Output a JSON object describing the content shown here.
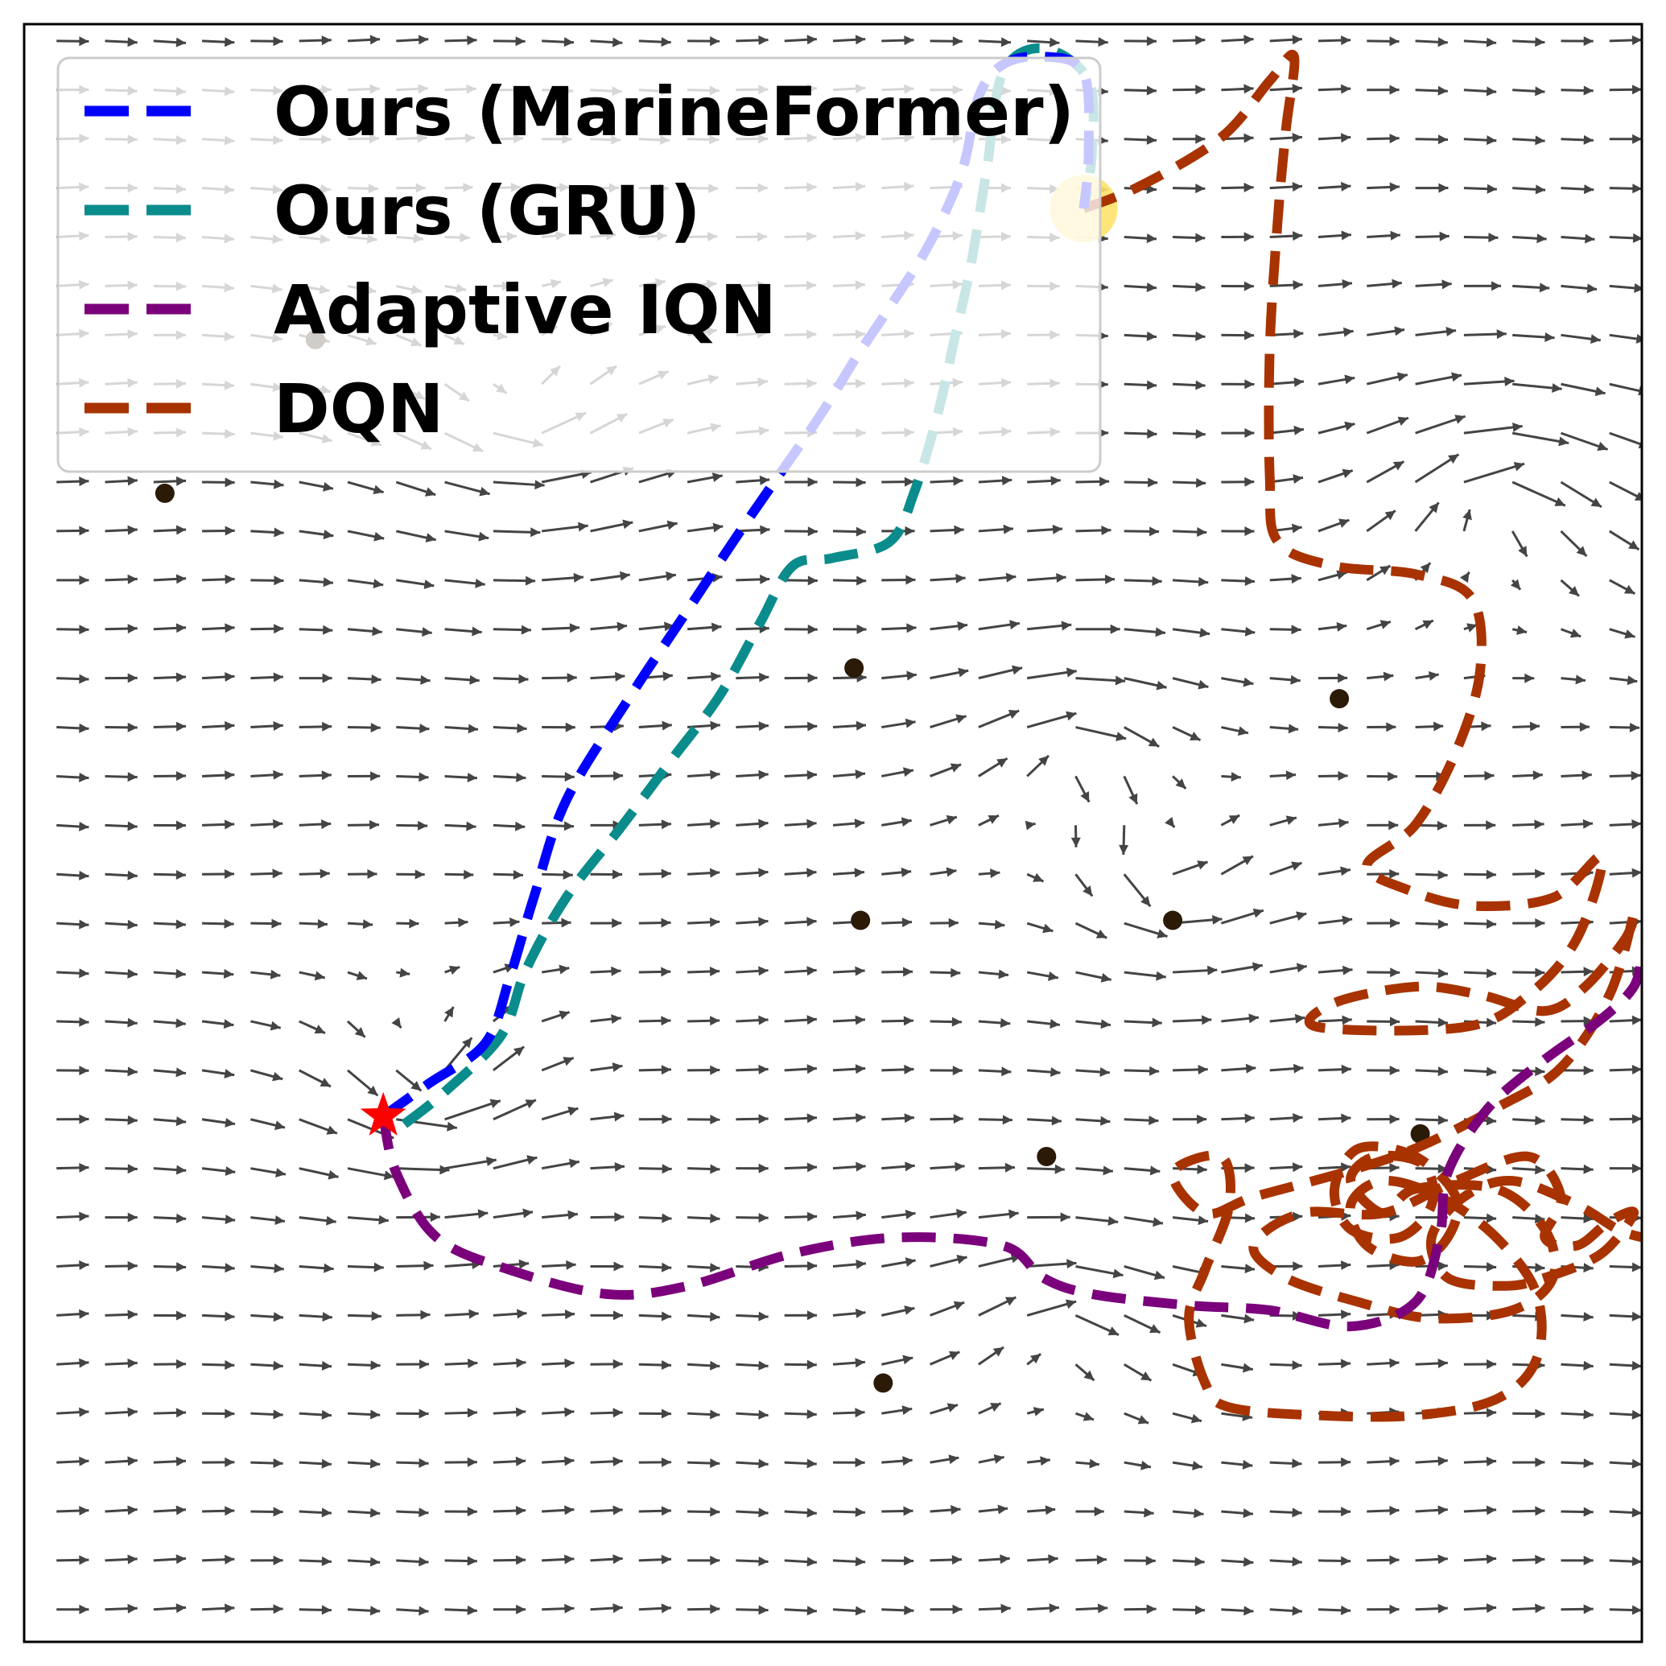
{
  "chart_data": {
    "type": "quiver+trajectories",
    "title": "",
    "xlabel": "",
    "ylabel": "",
    "xlim": [
      0,
      100
    ],
    "ylim": [
      0,
      100
    ],
    "ticks_visible": false,
    "legend": {
      "placement": "top-left",
      "entries": [
        {
          "label": "Ours (MarineFormer)",
          "color": "#0000ff"
        },
        {
          "label": "Ours (GRU)",
          "color": "#0b8c8c"
        },
        {
          "label": "Adaptive IQN",
          "color": "#7b007b"
        },
        {
          "label": "DQN",
          "color": "#a83300"
        }
      ]
    },
    "start": {
      "marker": "star",
      "color": "#ff0000",
      "x": 22.2,
      "y": 32.5
    },
    "goal": {
      "marker": "circle",
      "color": "#fde26a",
      "x": 65.5,
      "y": 88.6
    },
    "obstacles": [
      {
        "x": 8.7,
        "y": 71.0
      },
      {
        "x": 18.0,
        "y": 80.5
      },
      {
        "x": 51.3,
        "y": 60.2
      },
      {
        "x": 81.3,
        "y": 58.3
      },
      {
        "x": 51.7,
        "y": 44.6
      },
      {
        "x": 71.0,
        "y": 44.6
      },
      {
        "x": 63.2,
        "y": 30.0
      },
      {
        "x": 86.3,
        "y": 31.4
      },
      {
        "x": 53.1,
        "y": 16.0
      }
    ],
    "flow_field": {
      "grid": {
        "x0": 2.0,
        "dx": 3.0,
        "nx": 33,
        "y0": 2.0,
        "dy": 3.03,
        "ny": 33
      },
      "background_direction": "eastward",
      "vortices": [
        {
          "x": 24.0,
          "y": 35.0,
          "strength": 6,
          "radius": 6
        },
        {
          "x": 64.0,
          "y": 54.0,
          "strength": -5,
          "radius": 7
        },
        {
          "x": 70.0,
          "y": 48.0,
          "strength": 5,
          "radius": 6
        },
        {
          "x": 90.0,
          "y": 70.0,
          "strength": -6,
          "radius": 7
        },
        {
          "x": 63.0,
          "y": 19.0,
          "strength": -4,
          "radius": 6
        },
        {
          "x": 30.0,
          "y": 76.0,
          "strength": 4,
          "radius": 8
        }
      ]
    },
    "series": [
      {
        "name": "Ours (MarineFormer)",
        "color": "#0000ff",
        "points": [
          [
            22.2,
            32.5
          ],
          [
            25.0,
            34.5
          ],
          [
            28.5,
            37.0
          ],
          [
            30.0,
            41.0
          ],
          [
            31.5,
            46.0
          ],
          [
            33.5,
            52.0
          ],
          [
            37.5,
            58.5
          ],
          [
            40.5,
            63.0
          ],
          [
            44.5,
            69.0
          ],
          [
            49.0,
            75.5
          ],
          [
            51.5,
            79.5
          ],
          [
            53.5,
            82.5
          ],
          [
            56.0,
            86.5
          ],
          [
            58.0,
            91.0
          ],
          [
            59.0,
            95.5
          ],
          [
            60.5,
            97.5
          ],
          [
            63.0,
            98.0
          ],
          [
            65.5,
            97.0
          ],
          [
            65.8,
            92.0
          ],
          [
            65.5,
            88.6
          ]
        ]
      },
      {
        "name": "Ours (GRU)",
        "color": "#0b8c8c",
        "points": [
          [
            23.5,
            32.0
          ],
          [
            26.0,
            34.0
          ],
          [
            29.5,
            37.5
          ],
          [
            31.0,
            41.5
          ],
          [
            33.5,
            46.0
          ],
          [
            37.0,
            50.5
          ],
          [
            40.0,
            54.5
          ],
          [
            43.0,
            58.5
          ],
          [
            45.5,
            63.0
          ],
          [
            47.5,
            66.5
          ],
          [
            50.0,
            67.0
          ],
          [
            53.5,
            68.0
          ],
          [
            55.0,
            71.0
          ],
          [
            56.5,
            76.0
          ],
          [
            57.5,
            80.5
          ],
          [
            58.5,
            85.0
          ],
          [
            59.5,
            91.0
          ],
          [
            60.5,
            97.0
          ],
          [
            63.0,
            98.5
          ],
          [
            65.8,
            96.5
          ],
          [
            66.0,
            92.0
          ],
          [
            65.5,
            88.6
          ]
        ]
      },
      {
        "name": "Adaptive IQN",
        "color": "#7b007b",
        "points": [
          [
            22.2,
            32.5
          ],
          [
            23.0,
            29.0
          ],
          [
            25.5,
            25.0
          ],
          [
            30.0,
            23.0
          ],
          [
            36.0,
            21.5
          ],
          [
            41.0,
            22.0
          ],
          [
            47.5,
            24.0
          ],
          [
            54.0,
            25.0
          ],
          [
            60.5,
            24.5
          ],
          [
            63.0,
            22.5
          ],
          [
            66.0,
            21.5
          ],
          [
            72.0,
            20.8
          ],
          [
            77.0,
            20.5
          ],
          [
            82.0,
            19.5
          ],
          [
            86.0,
            21.0
          ],
          [
            87.5,
            25.0
          ],
          [
            88.0,
            29.0
          ],
          [
            90.5,
            33.0
          ],
          [
            94.0,
            36.0
          ],
          [
            97.5,
            38.5
          ],
          [
            99.5,
            40.5
          ],
          [
            100.0,
            42.5
          ]
        ]
      },
      {
        "name": "DQN",
        "color": "#a83300",
        "points": [
          [
            65.5,
            88.6
          ],
          [
            69.0,
            90.0
          ],
          [
            74.0,
            93.0
          ],
          [
            77.0,
            96.5
          ],
          [
            78.5,
            98.0
          ],
          [
            78.0,
            93.5
          ],
          [
            77.5,
            88.0
          ],
          [
            77.0,
            80.0
          ],
          [
            77.0,
            72.0
          ],
          [
            77.5,
            68.0
          ],
          [
            81.0,
            66.5
          ],
          [
            86.0,
            66.0
          ],
          [
            89.5,
            64.5
          ],
          [
            90.0,
            60.0
          ],
          [
            88.5,
            55.0
          ],
          [
            86.0,
            50.5
          ],
          [
            83.0,
            48.0
          ],
          [
            85.5,
            46.5
          ],
          [
            89.5,
            45.5
          ],
          [
            94.5,
            46.0
          ],
          [
            97.5,
            48.5
          ],
          [
            96.0,
            43.5
          ],
          [
            93.0,
            40.0
          ],
          [
            89.0,
            38.0
          ],
          [
            80.0,
            38.0
          ],
          [
            81.0,
            39.5
          ],
          [
            86.0,
            40.5
          ],
          [
            90.0,
            40.0
          ],
          [
            94.0,
            39.0
          ],
          [
            96.5,
            40.5
          ],
          [
            99.0,
            43.5
          ],
          [
            99.5,
            45.0
          ],
          [
            98.0,
            40.0
          ],
          [
            95.0,
            35.5
          ],
          [
            91.0,
            33.0
          ],
          [
            86.0,
            30.5
          ],
          [
            81.5,
            29.0
          ],
          [
            76.0,
            27.5
          ],
          [
            73.0,
            26.5
          ],
          [
            71.0,
            29.0
          ],
          [
            74.0,
            30.0
          ],
          [
            74.5,
            27.0
          ],
          [
            73.0,
            23.0
          ],
          [
            72.0,
            20.0
          ],
          [
            73.0,
            16.0
          ],
          [
            74.5,
            14.5
          ],
          [
            80.0,
            14.0
          ],
          [
            86.0,
            14.0
          ],
          [
            91.0,
            15.0
          ],
          [
            93.5,
            17.5
          ],
          [
            93.5,
            21.5
          ],
          [
            91.0,
            25.0
          ],
          [
            87.5,
            27.5
          ],
          [
            84.0,
            28.5
          ],
          [
            82.0,
            27.0
          ],
          [
            83.0,
            24.5
          ],
          [
            86.0,
            23.5
          ],
          [
            88.0,
            25.0
          ],
          [
            88.5,
            27.5
          ],
          [
            86.0,
            30.0
          ],
          [
            82.5,
            30.5
          ],
          [
            81.0,
            28.0
          ],
          [
            82.0,
            25.5
          ],
          [
            85.0,
            25.0
          ],
          [
            87.0,
            27.0
          ],
          [
            86.5,
            29.5
          ],
          [
            83.5,
            30.0
          ],
          [
            82.0,
            28.5
          ],
          [
            84.0,
            26.5
          ],
          [
            86.0,
            28.0
          ],
          [
            91.0,
            28.0
          ],
          [
            94.0,
            25.5
          ],
          [
            94.5,
            22.5
          ],
          [
            92.0,
            20.5
          ],
          [
            87.0,
            20.0
          ],
          [
            82.5,
            21.0
          ],
          [
            78.0,
            22.5
          ],
          [
            76.0,
            24.5
          ],
          [
            79.0,
            26.5
          ],
          [
            84.0,
            26.5
          ],
          [
            88.5,
            28.5
          ],
          [
            93.0,
            30.0
          ],
          [
            95.0,
            27.5
          ],
          [
            94.0,
            25.0
          ],
          [
            96.0,
            24.5
          ],
          [
            98.0,
            26.0
          ],
          [
            99.5,
            26.5
          ],
          [
            97.5,
            24.0
          ],
          [
            94.0,
            22.5
          ],
          [
            91.5,
            22.0
          ],
          [
            88.0,
            22.5
          ],
          [
            87.0,
            25.0
          ],
          [
            89.0,
            27.5
          ],
          [
            92.0,
            28.5
          ],
          [
            96.0,
            27.0
          ],
          [
            98.5,
            25.5
          ],
          [
            100.0,
            25.0
          ]
        ]
      }
    ]
  }
}
